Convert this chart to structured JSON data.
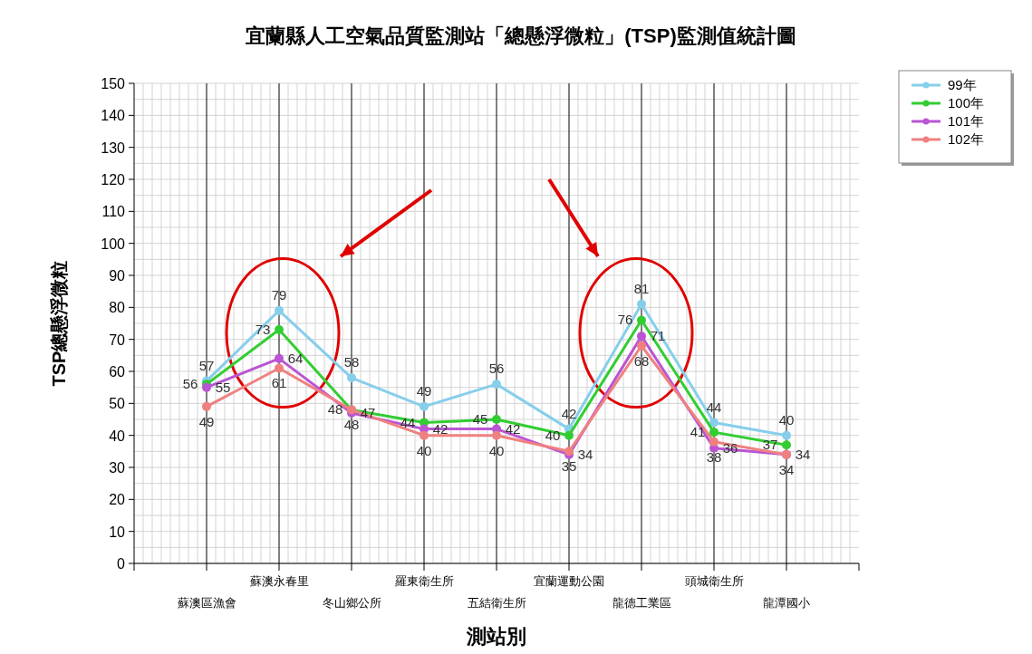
{
  "chart_data": {
    "type": "line",
    "title": "宜蘭縣人工空氣品質監測站「總懸浮微粒」(TSP)監測值統計圖",
    "xlabel": "測站別",
    "ylabel": "TSP總懸浮微粒",
    "categories": [
      "蘇澳區漁會",
      "蘇澳永春里",
      "冬山鄉公所",
      "羅東衛生所",
      "五結衛生所",
      "宜蘭運動公園",
      "龍德工業區",
      "頭城衛生所",
      "龍潭國小"
    ],
    "series": [
      {
        "name": "99年",
        "color": "#87ceeb",
        "values": [
          57,
          79,
          58,
          49,
          56,
          42,
          81,
          44,
          40
        ]
      },
      {
        "name": "100年",
        "color": "#32cd32",
        "values": [
          56,
          73,
          48,
          44,
          45,
          40,
          76,
          41,
          37
        ]
      },
      {
        "name": "101年",
        "color": "#ba55d3",
        "values": [
          55,
          64,
          47,
          42,
          42,
          34,
          71,
          36,
          34
        ]
      },
      {
        "name": "102年",
        "color": "#f08080",
        "values": [
          49,
          61,
          48,
          40,
          40,
          35,
          68,
          38,
          34
        ]
      }
    ],
    "ylim": [
      0,
      150
    ],
    "yticks": [
      0,
      10,
      20,
      30,
      40,
      50,
      60,
      70,
      80,
      90,
      100,
      110,
      120,
      130,
      140,
      150
    ],
    "grid": true,
    "legend": "top right",
    "marker": "circle",
    "line_style": "solid",
    "data_labels": true
  }
}
